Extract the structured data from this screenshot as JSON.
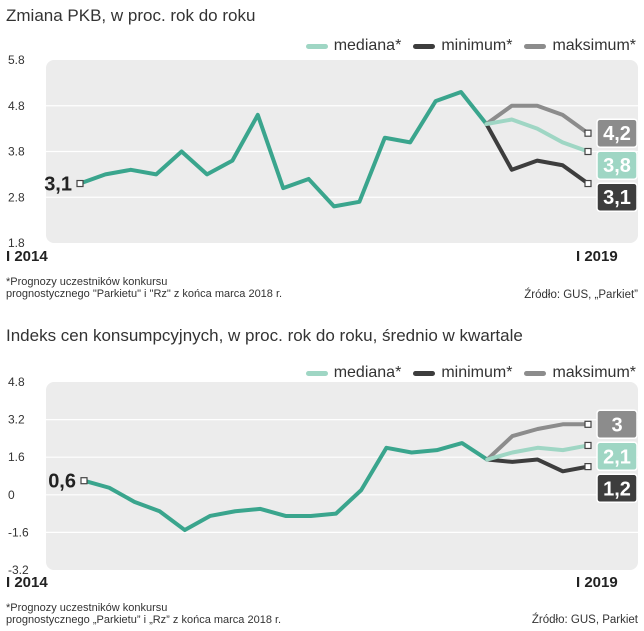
{
  "colors": {
    "mediana": "#3aa58d",
    "mediana_fc": "#9fd6c4",
    "minimum": "#3d3d3d",
    "maksimum": "#8c8c8c",
    "plot_bg": "#ececec",
    "grid": "#ffffff"
  },
  "legend": {
    "mediana": "mediana*",
    "minimum": "minimum*",
    "maksimum": "maksimum*"
  },
  "chart_data": [
    {
      "type": "line",
      "title": "Zmiana PKB, w proc. rok do roku",
      "yticks": [
        "5.8",
        "4.8",
        "3.8",
        "2.8",
        "1.8"
      ],
      "ylim": [
        1.8,
        5.8
      ],
      "x_start_label": "I 2014",
      "x_end_label": "I 2019",
      "history": [
        3.1,
        3.3,
        3.4,
        3.3,
        3.8,
        3.3,
        3.6,
        4.6,
        3.0,
        3.2,
        2.6,
        2.7,
        4.1,
        4.0,
        4.9,
        5.1,
        4.4
      ],
      "series": [
        {
          "name": "mediana",
          "values": [
            4.4,
            4.5,
            4.3,
            4.0,
            3.8
          ]
        },
        {
          "name": "minimum",
          "values": [
            4.4,
            3.4,
            3.6,
            3.5,
            3.1
          ]
        },
        {
          "name": "maksimum",
          "values": [
            4.4,
            4.8,
            4.8,
            4.6,
            4.2
          ]
        }
      ],
      "start_label": "3,1",
      "end_labels": {
        "maksimum": "4,2",
        "mediana": "3,8",
        "minimum": "3,1"
      },
      "footnote": [
        "*Prognozy uczestników konkursu",
        "prognostycznego \"Parkietu\" i \"Rz\" z końca marca 2018 r."
      ],
      "source": "Źródło: GUS, „Parkiet”"
    },
    {
      "type": "line",
      "title": "Indeks cen konsumpcyjnych, w proc. rok do roku, średnio w kwartale",
      "yticks": [
        "4.8",
        "3.2",
        "1.6",
        "0",
        "-1.6",
        "-3.2"
      ],
      "ylim": [
        -3.2,
        4.8
      ],
      "x_start_label": "I 2014",
      "x_end_label": "I 2019",
      "history": [
        0.6,
        0.3,
        -0.3,
        -0.7,
        -1.5,
        -0.9,
        -0.7,
        -0.6,
        -0.9,
        -0.9,
        -0.8,
        0.2,
        2.0,
        1.8,
        1.9,
        2.2,
        1.5
      ],
      "series": [
        {
          "name": "mediana",
          "values": [
            1.5,
            1.8,
            2.0,
            1.9,
            2.1
          ]
        },
        {
          "name": "minimum",
          "values": [
            1.5,
            1.4,
            1.5,
            1.0,
            1.2
          ]
        },
        {
          "name": "maksimum",
          "values": [
            1.5,
            2.5,
            2.8,
            3.0,
            3.0
          ]
        }
      ],
      "start_label": "0,6",
      "end_labels": {
        "maksimum": "3",
        "mediana": "2,1",
        "minimum": "1,2"
      },
      "footnote": [
        "*Prognozy uczestników konkursu",
        "prognostycznego „Parkietu” i „Rz” z końca marca 2018 r."
      ],
      "source": "Źródło: GUS, Parkiet"
    }
  ]
}
